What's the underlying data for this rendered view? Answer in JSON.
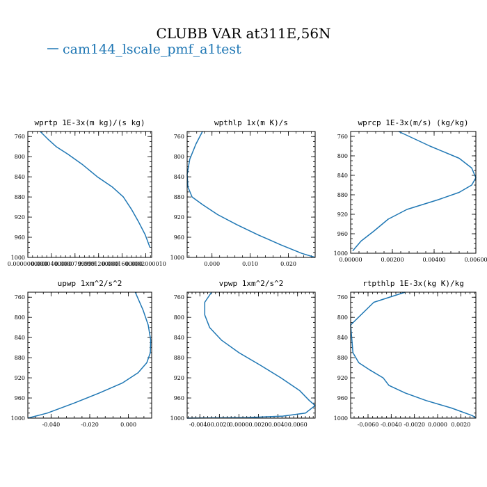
{
  "figure": {
    "title": "CLUBB VAR at311E,56N",
    "legend_label": "cam144_lscale_pmf_a1test",
    "series_color": "#1f77b4"
  },
  "chart_data": [
    {
      "type": "line",
      "title": "wprtp  1E-3x(m kg)/(s kg)",
      "xlim": [
        0.0,
        0.00021
      ],
      "ylim": [
        1000,
        750
      ],
      "x_ticks": [
        0.0,
        4e-05,
        8e-05,
        0.00012,
        0.00016,
        0.0002
      ],
      "x_tick_labels": [
        "0.0000000000",
        "0.0000400000",
        "0.0000799999",
        "0.0001200000",
        "0.0001600000",
        "0.0002000010"
      ],
      "y_ticks": [
        760,
        800,
        840,
        880,
        920,
        960,
        1000
      ],
      "y_tick_labels": [
        "760",
        "800",
        "840",
        "880",
        "920",
        "960",
        "1000"
      ],
      "series": [
        {
          "x": [
            2.1e-05,
            3.4e-05,
            4.8e-05,
            6.8e-05,
            9.2e-05,
            0.000118,
            0.000143,
            0.000162,
            0.000176,
            0.000188,
            0.000199,
            0.000207
          ],
          "y": [
            750,
            765,
            780,
            795,
            815,
            840,
            860,
            880,
            905,
            930,
            955,
            980
          ]
        }
      ]
    },
    {
      "type": "line",
      "title": "wpthlp  1x(m K)/s",
      "xlim": [
        -0.0065,
        0.027
      ],
      "ylim": [
        1000,
        750
      ],
      "x_ticks": [
        0.0,
        0.01,
        0.02
      ],
      "x_tick_labels": [
        "0.000",
        "0.010",
        "0.020"
      ],
      "y_ticks": [
        760,
        800,
        840,
        880,
        920,
        960,
        1000
      ],
      "y_tick_labels": [
        "760",
        "800",
        "840",
        "880",
        "920",
        "960",
        "1000"
      ],
      "series": [
        {
          "x": [
            -0.0025,
            -0.0042,
            -0.0058,
            -0.0065,
            -0.0063,
            -0.0052,
            -0.0025,
            0.0015,
            0.0065,
            0.012,
            0.018,
            0.0235,
            0.027
          ],
          "y": [
            750,
            775,
            805,
            835,
            860,
            880,
            895,
            915,
            935,
            955,
            975,
            992,
            1000
          ]
        }
      ]
    },
    {
      "type": "line",
      "title": "wprcp  1E-3x(m/s) (kg/kg)",
      "xlim": [
        0.0,
        0.006
      ],
      "ylim": [
        1000,
        750
      ],
      "x_ticks": [
        0.0,
        0.002,
        0.004,
        0.006
      ],
      "x_tick_labels": [
        "0.00000",
        "0.00200",
        "0.00400",
        "0.00600"
      ],
      "y_ticks": [
        760,
        800,
        840,
        880,
        920,
        960,
        1000
      ],
      "y_tick_labels": [
        "760",
        "800",
        "840",
        "880",
        "920",
        "960",
        "1000"
      ],
      "series": [
        {
          "x": [
            0.0023,
            0.0038,
            0.0052,
            0.0058,
            0.006,
            0.0058,
            0.0052,
            0.0042,
            0.0027,
            0.0018,
            0.0011,
            0.0005,
            0.0001
          ],
          "y": [
            750,
            780,
            805,
            825,
            845,
            860,
            875,
            890,
            910,
            930,
            955,
            975,
            995
          ]
        }
      ]
    },
    {
      "type": "line",
      "title": "upwp  1xm^2/s^2",
      "xlim": [
        -0.052,
        0.012
      ],
      "ylim": [
        1000,
        750
      ],
      "x_ticks": [
        -0.04,
        -0.02,
        0.0
      ],
      "x_tick_labels": [
        "-0.040",
        "-0.020",
        "0.000"
      ],
      "y_ticks": [
        760,
        800,
        840,
        880,
        920,
        960,
        1000
      ],
      "y_tick_labels": [
        "760",
        "800",
        "840",
        "880",
        "920",
        "960",
        "1000"
      ],
      "series": [
        {
          "x": [
            0.0035,
            0.0075,
            0.0102,
            0.0115,
            0.0113,
            0.0095,
            0.005,
            -0.003,
            -0.015,
            -0.028,
            -0.042,
            -0.052
          ],
          "y": [
            750,
            785,
            815,
            845,
            870,
            890,
            910,
            930,
            950,
            970,
            990,
            1000
          ]
        }
      ]
    },
    {
      "type": "line",
      "title": "vpwp  1xm^2/s^2",
      "xlim": [
        -0.0053,
        0.0078
      ],
      "ylim": [
        1000,
        750
      ],
      "x_ticks": [
        -0.004,
        -0.002,
        0.0,
        0.002,
        0.004,
        0.006
      ],
      "x_tick_labels": [
        "-0.0040",
        "-0.0020",
        "0.0000",
        "0.0020",
        "0.0040",
        "0.0060"
      ],
      "y_ticks": [
        760,
        800,
        840,
        880,
        920,
        960,
        1000
      ],
      "y_tick_labels": [
        "760",
        "800",
        "840",
        "880",
        "920",
        "960",
        "1000"
      ],
      "series": [
        {
          "x": [
            -0.0028,
            -0.0035,
            -0.0035,
            -0.003,
            -0.0018,
            0.0,
            0.0022,
            0.0043,
            0.0062,
            0.0072,
            0.0078,
            0.0068,
            0.0045,
            0.0008,
            -0.0053
          ],
          "y": [
            750,
            770,
            795,
            820,
            845,
            870,
            895,
            920,
            945,
            965,
            975,
            990,
            996,
            999,
            1000
          ]
        }
      ]
    },
    {
      "type": "line",
      "title": "rtpthlp  1E-3x(kg K)/kg",
      "xlim": [
        -0.0075,
        0.0033
      ],
      "ylim": [
        1000,
        750
      ],
      "x_ticks": [
        -0.006,
        -0.004,
        -0.002,
        0.0,
        0.002
      ],
      "x_tick_labels": [
        "-0.0060",
        "-0.0040",
        "-0.0020",
        "0.0000",
        "0.0020"
      ],
      "y_ticks": [
        760,
        800,
        840,
        880,
        920,
        960,
        1000
      ],
      "y_tick_labels": [
        "760",
        "800",
        "840",
        "880",
        "920",
        "960",
        "1000"
      ],
      "series": [
        {
          "x": [
            -0.0028,
            -0.0055,
            -0.0075,
            -0.0073,
            -0.0068,
            -0.0058,
            -0.0047,
            -0.0042,
            -0.0028,
            -0.001,
            0.0012,
            0.003,
            0.0033
          ],
          "y": [
            750,
            770,
            815,
            870,
            890,
            905,
            920,
            935,
            950,
            965,
            980,
            995,
            1000
          ]
        }
      ]
    }
  ]
}
